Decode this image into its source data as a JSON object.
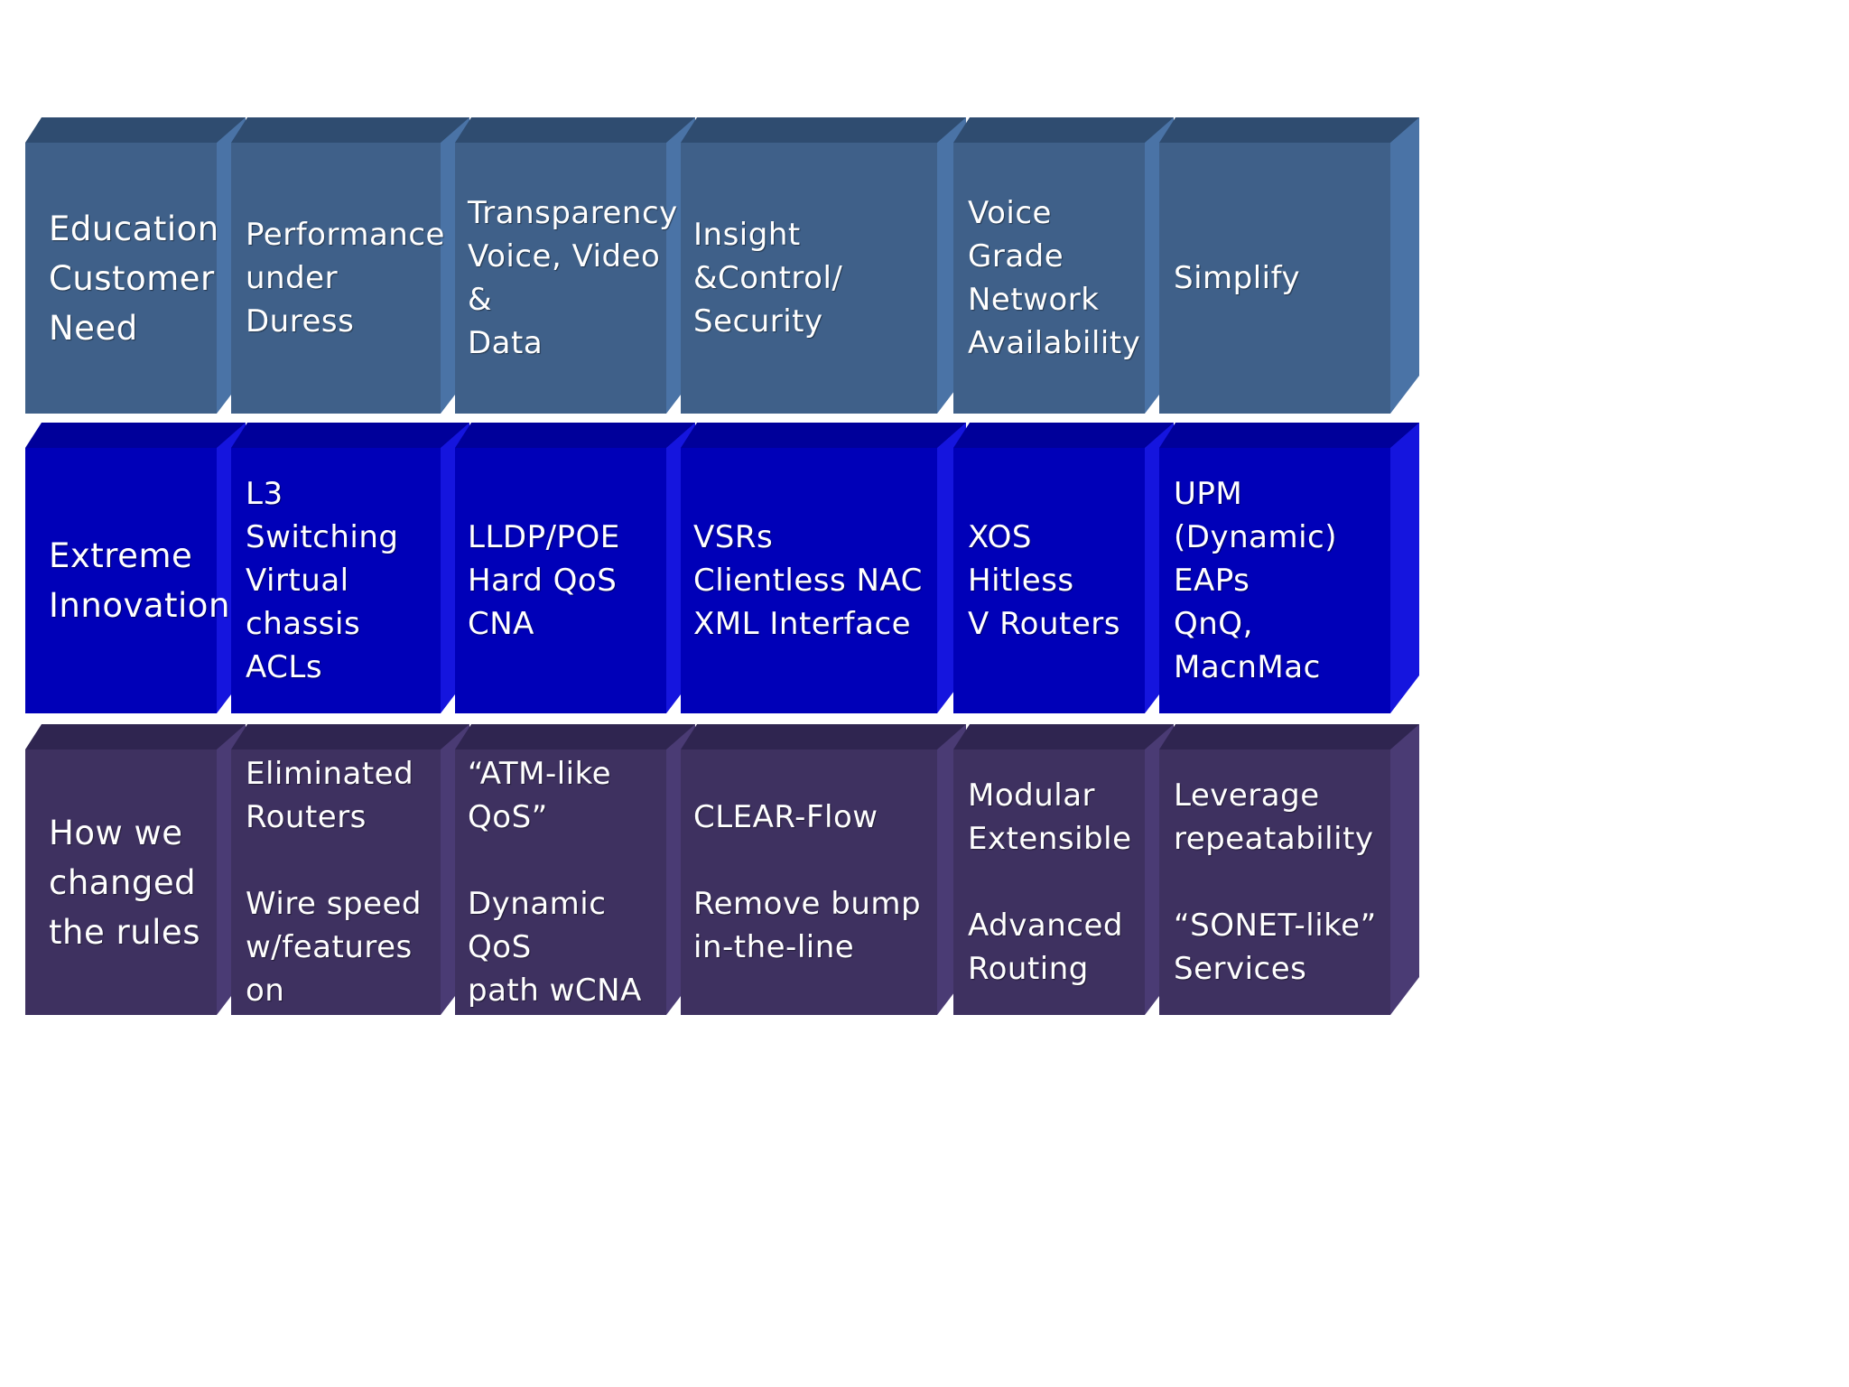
{
  "colors": {
    "row_need": {
      "face": "#3f6089",
      "top": "#2f4c70",
      "side": "#4a73a6"
    },
    "row_innovation": {
      "face": "#0000b8",
      "top": "#00009a",
      "side": "#1515de"
    },
    "row_rules": {
      "face": "#3e3160",
      "top": "#2f2550",
      "side": "#4a3b74"
    }
  },
  "rows": [
    {
      "id": "need",
      "label": "Education\nCustomer\nNeed",
      "cells": [
        "Performance\nunder Duress",
        "Transparency\nVoice, Video &\nData",
        "Insight &Control/\nSecurity",
        "Voice Grade\nNetwork\nAvailability",
        "Simplify"
      ]
    },
    {
      "id": "innovation",
      "label": "Extreme\nInnovation",
      "cells": [
        "L3 Switching\nVirtual chassis\nACLs",
        "LLDP/POE\nHard QoS\nCNA",
        "VSRs\nClientless NAC\nXML Interface",
        "XOS\nHitless\nV Routers",
        "UPM (Dynamic)\nEAPs\nQnQ, MacnMac"
      ]
    },
    {
      "id": "rules",
      "label": "How we\nchanged\nthe rules",
      "cells": [
        "Eliminated\n Routers\n\nWire speed\nw/features on",
        "“ATM-like QoS”\n\nDynamic QoS\npath wCNA",
        " CLEAR-Flow\n\nRemove bump\nin-the-line",
        "Modular\nExtensible\n\nAdvanced\nRouting",
        "Leverage\nrepeatability\n\n“SONET-like”\nServices"
      ]
    }
  ]
}
